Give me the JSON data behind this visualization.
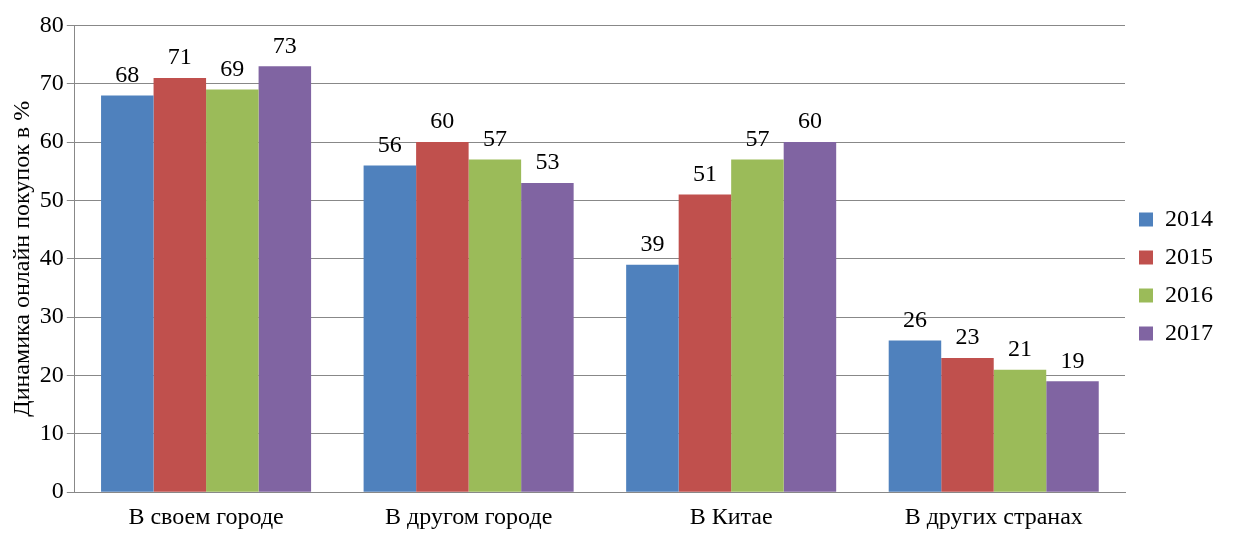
{
  "chart_data": {
    "type": "bar",
    "ylabel": "Динамика онлайн покупок в %",
    "categories": [
      "В своем городе",
      "В другом городе",
      "В Китае",
      "В других странах"
    ],
    "series": [
      {
        "name": "2014",
        "color": "#4f81bd",
        "values": [
          68,
          56,
          39,
          26
        ]
      },
      {
        "name": "2015",
        "color": "#c0504d",
        "values": [
          71,
          60,
          51,
          23
        ]
      },
      {
        "name": "2016",
        "color": "#9bbb59",
        "values": [
          69,
          57,
          57,
          21
        ]
      },
      {
        "name": "2017",
        "color": "#8064a2",
        "values": [
          73,
          53,
          60,
          19
        ]
      }
    ],
    "ylim": [
      0,
      80
    ],
    "yticks": [
      0,
      10,
      20,
      30,
      40,
      50,
      60,
      70,
      80
    ],
    "grid": "y",
    "legend": "right",
    "data_labels": true
  }
}
